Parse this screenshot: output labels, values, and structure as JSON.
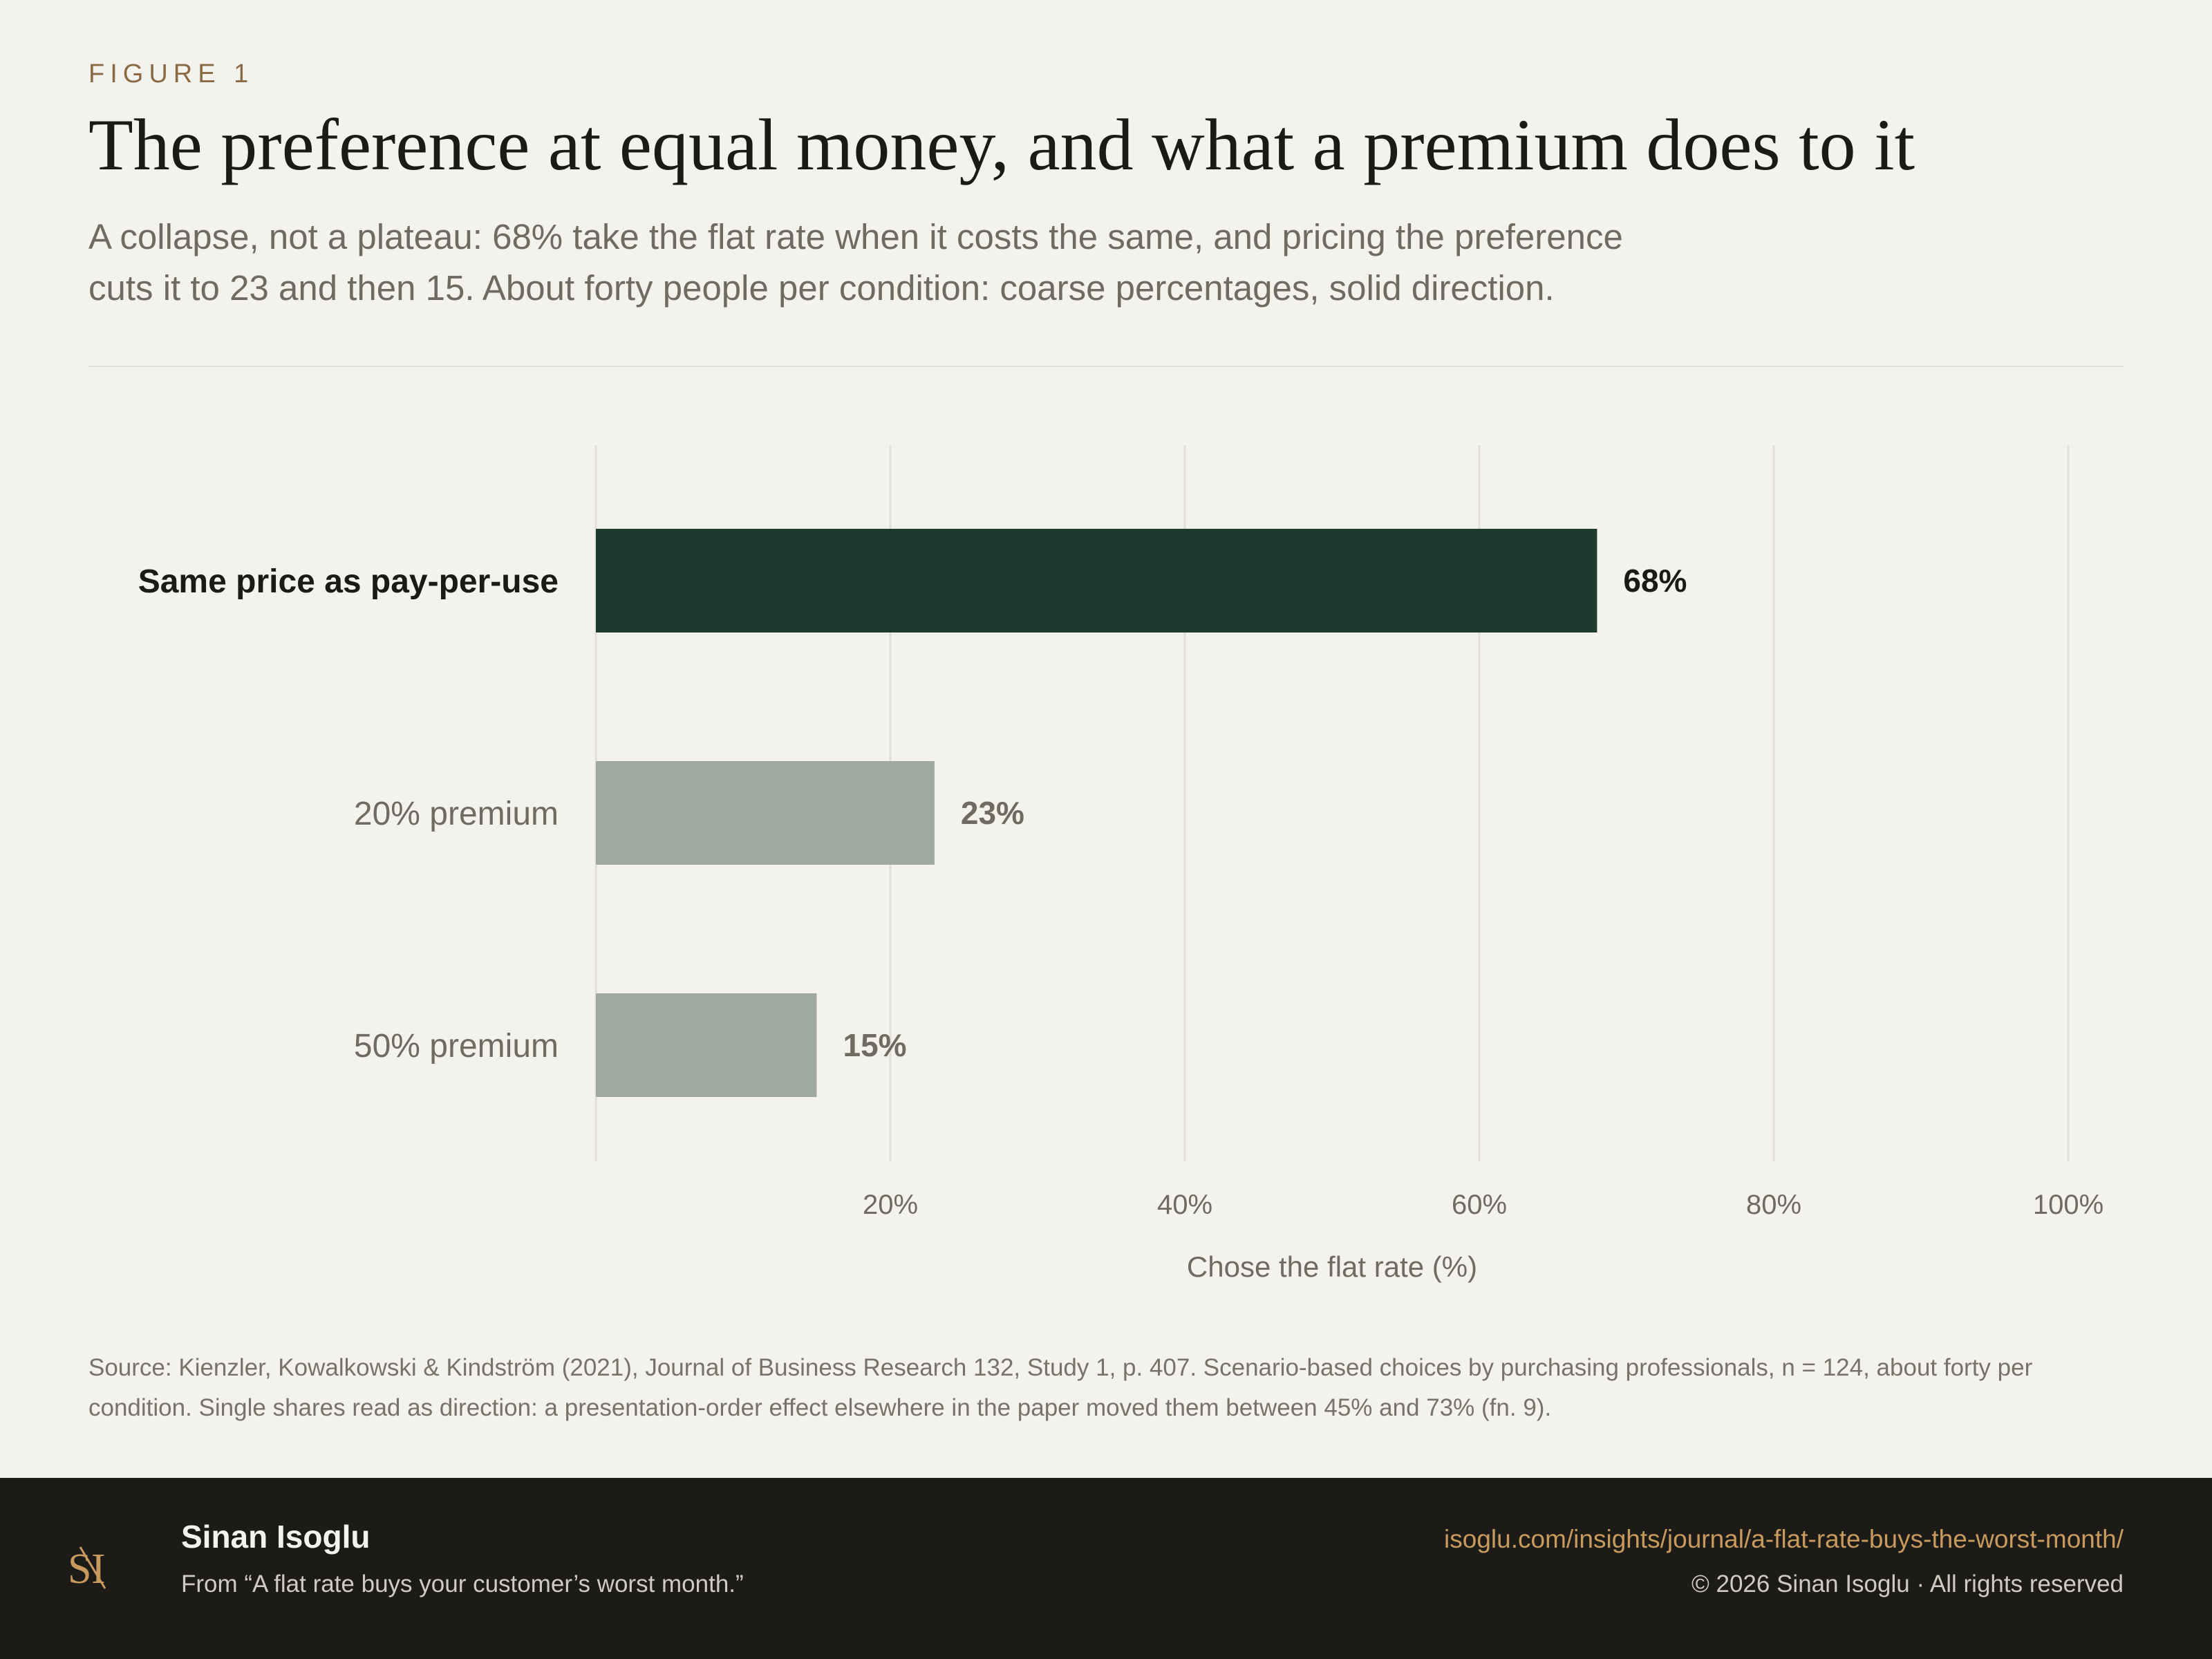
{
  "header": {
    "figure_label": "FIGURE 1",
    "title": "The preference at equal money, and what a premium does to it",
    "subtitle": "A collapse, not a plateau: 68% take the flat rate when it costs the same, and pricing the preference cuts it to 23 and then 15. About forty people per condition: coarse percentages, solid direction."
  },
  "chart_data": {
    "type": "bar",
    "orientation": "horizontal",
    "categories": [
      "Same price as pay-per-use",
      "20% premium",
      "50% premium"
    ],
    "values": [
      68,
      23,
      15
    ],
    "value_labels": [
      "68%",
      "23%",
      "15%"
    ],
    "highlight_index": 0,
    "xlabel": "Chose the flat rate (%)",
    "xlim": [
      0,
      100
    ],
    "x_ticks": [
      20,
      40,
      60,
      80,
      100
    ],
    "x_tick_labels": [
      "20%",
      "40%",
      "60%",
      "80%",
      "100%"
    ],
    "grid": true,
    "colors": {
      "highlight": "#1e3a2f",
      "muted": "#9ea9a0",
      "grid": "#e2dfd8"
    }
  },
  "source": "Source: Kienzler, Kowalkowski & Kindström (2021), Journal of Business Research 132, Study 1, p. 407. Scenario-based choices by purchasing professionals, n = 124, about forty per condition. Single shares read as direction: a presentation-order effect elsewhere in the paper moved them between 45% and 73% (fn. 9).",
  "footer": {
    "logo_icon": "si-monogram-icon",
    "author": "Sinan Isoglu",
    "from": "From “A flat rate buys your customer’s worst month.”",
    "url": "isoglu.com/insights/journal/a-flat-rate-buys-the-worst-month/",
    "copyright": "© 2026 Sinan Isoglu · All rights reserved"
  }
}
